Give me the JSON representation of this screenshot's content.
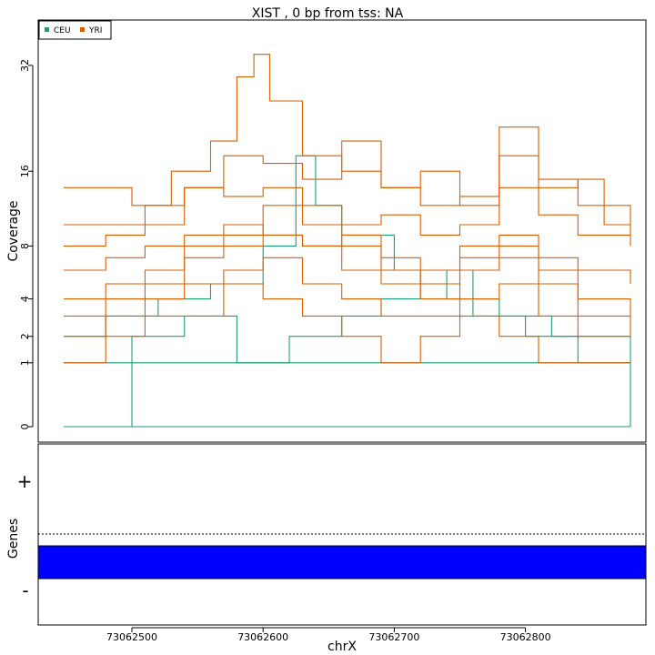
{
  "title": "XIST , 0 bp from tss: NA",
  "chart_data": [
    {
      "type": "line",
      "title": "XIST , 0 bp from tss: NA",
      "ylabel": "Coverage",
      "y_scale": "sqrt",
      "ylim": [
        0,
        35
      ],
      "yticks": [
        0,
        1,
        2,
        4,
        8,
        16,
        32
      ],
      "xlim": [
        73062430,
        73062885
      ],
      "legend": {
        "position": "top-left",
        "entries": [
          {
            "name": "CEU",
            "color": "#1B9E77"
          },
          {
            "name": "YRI",
            "color": "#D95F02"
          }
        ]
      },
      "grid": false,
      "series": [
        {
          "name": "CEU",
          "color": "#1B9E77",
          "x": [
            73062448,
            73062520,
            73062560,
            73062600,
            73062640,
            73062680,
            73062720,
            73062760,
            73062800,
            73062840,
            73062880
          ],
          "values": [
            0,
            0,
            0,
            0,
            0,
            0,
            0,
            0,
            0,
            0,
            0
          ]
        },
        {
          "name": "CEU",
          "color": "#1B9E77",
          "x": [
            73062448,
            73062500,
            73062560,
            73062600,
            73062640,
            73062700,
            73062760,
            73062820,
            73062880
          ],
          "values": [
            1,
            1,
            1,
            1,
            1,
            1,
            1,
            1,
            1
          ]
        },
        {
          "name": "CEU",
          "color": "#1B9E77",
          "x": [
            73062448,
            73062480,
            73062520,
            73062560,
            73062600,
            73062625,
            73062640,
            73062660,
            73062700,
            73062740,
            73062780,
            73062820,
            73062860,
            73062880
          ],
          "values": [
            2,
            3,
            4,
            5,
            8,
            18,
            12,
            9,
            6,
            4,
            3,
            2,
            2,
            1
          ]
        },
        {
          "name": "CEU",
          "color": "#1B9E77",
          "x": [
            73062448,
            73062500,
            73062540,
            73062580,
            73062620,
            73062660,
            73062690,
            73062720,
            73062760,
            73062800,
            73062840,
            73062880
          ],
          "values": [
            0,
            2,
            3,
            1,
            2,
            3,
            4,
            6,
            3,
            2,
            1,
            0
          ]
        },
        {
          "name": "YRI",
          "color": "#D95F02",
          "x": [
            73062448,
            73062470,
            73062500,
            73062530,
            73062560,
            73062580,
            73062593,
            73062605,
            73062630,
            73062660,
            73062690,
            73062720,
            73062750,
            73062780,
            73062810,
            73062840,
            73062860,
            73062880
          ],
          "values": [
            14,
            14,
            12,
            16,
            20,
            30,
            34,
            26,
            18,
            16,
            14,
            16,
            12,
            18,
            14,
            15,
            10,
            9
          ]
        },
        {
          "name": "YRI",
          "color": "#D95F02",
          "x": [
            73062448,
            73062480,
            73062510,
            73062540,
            73062570,
            73062600,
            73062630,
            73062660,
            73062690,
            73062720,
            73062750,
            73062780,
            73062810,
            73062840,
            73062880
          ],
          "values": [
            10,
            10,
            12,
            14,
            18,
            17,
            15,
            20,
            14,
            12,
            13,
            22,
            15,
            12,
            10
          ]
        },
        {
          "name": "YRI",
          "color": "#D95F02",
          "x": [
            73062448,
            73062480,
            73062510,
            73062540,
            73062570,
            73062600,
            73062630,
            73062660,
            73062690,
            73062720,
            73062750,
            73062780,
            73062810,
            73062840,
            73062880
          ],
          "values": [
            8,
            9,
            10,
            14,
            13,
            14,
            12,
            10,
            11,
            9,
            10,
            14,
            11,
            9,
            8
          ]
        },
        {
          "name": "YRI",
          "color": "#D95F02",
          "x": [
            73062448,
            73062480,
            73062510,
            73062540,
            73062570,
            73062600,
            73062630,
            73062660,
            73062690,
            73062720,
            73062750,
            73062780,
            73062810,
            73062840,
            73062880
          ],
          "values": [
            6,
            7,
            8,
            9,
            10,
            9,
            8,
            9,
            7,
            6,
            8,
            9,
            7,
            6,
            5
          ]
        },
        {
          "name": "YRI",
          "color": "#D95F02",
          "x": [
            73062448,
            73062480,
            73062510,
            73062540,
            73062570,
            73062600,
            73062630,
            73062660,
            73062690,
            73062720,
            73062750,
            73062780,
            73062810,
            73062840,
            73062880
          ],
          "values": [
            4,
            5,
            6,
            7,
            8,
            9,
            8,
            6,
            5,
            4,
            6,
            7,
            5,
            4,
            3
          ]
        },
        {
          "name": "YRI",
          "color": "#D95F02",
          "x": [
            73062448,
            73062480,
            73062510,
            73062540,
            73062570,
            73062600,
            73062630,
            73062660,
            73062690,
            73062720,
            73062750,
            73062780,
            73062810,
            73062840,
            73062880
          ],
          "values": [
            2,
            3,
            4,
            5,
            6,
            7,
            5,
            4,
            3,
            3,
            4,
            5,
            3,
            2,
            2
          ]
        },
        {
          "name": "YRI",
          "color": "#D95F02",
          "x": [
            73062448,
            73062480,
            73062510,
            73062540,
            73062570,
            73062600,
            73062630,
            73062660,
            73062690,
            73062720,
            73062750,
            73062780,
            73062810,
            73062840,
            73062880
          ],
          "values": [
            1,
            2,
            3,
            3,
            5,
            4,
            3,
            2,
            1,
            2,
            3,
            2,
            1,
            1,
            1
          ]
        },
        {
          "name": "YRI",
          "color": "#D95F02",
          "x": [
            73062448,
            73062480,
            73062510,
            73062540,
            73062570,
            73062600,
            73062630,
            73062660,
            73062690,
            73062720,
            73062750,
            73062780,
            73062810,
            73062840,
            73062880
          ],
          "values": [
            3,
            4,
            5,
            8,
            9,
            12,
            10,
            8,
            6,
            5,
            7,
            8,
            6,
            3,
            2
          ]
        }
      ]
    },
    {
      "type": "gene-track",
      "ylabel": "Genes",
      "strand_labels": [
        "+",
        "-"
      ],
      "xlabel": "chrX",
      "xlim": [
        73062430,
        73062885
      ],
      "xticks": [
        73062500,
        73062600,
        73062700,
        73062800
      ],
      "features": [
        {
          "strand": "-",
          "start": 73062430,
          "end": 73062885,
          "color": "#0000FF"
        }
      ]
    }
  ]
}
